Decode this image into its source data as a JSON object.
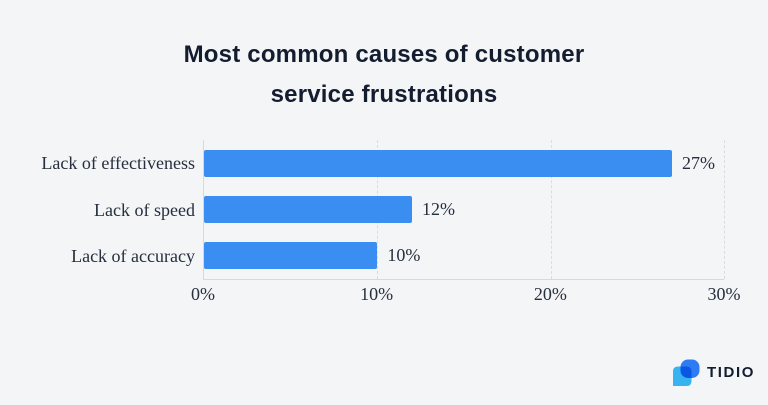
{
  "title": {
    "line1": "Most common causes of customer",
    "line2": "service frustrations"
  },
  "chart_data": {
    "type": "bar",
    "orientation": "horizontal",
    "title": "Most common causes of customer service frustrations",
    "categories": [
      "Lack of effectiveness",
      "Lack of speed",
      "Lack of accuracy"
    ],
    "values": [
      27,
      12,
      10
    ],
    "value_labels": [
      "27%",
      "12%",
      "10%"
    ],
    "x_ticks": [
      "0%",
      "10%",
      "20%",
      "30%"
    ],
    "xlim": [
      0,
      30
    ],
    "xlabel": "",
    "ylabel": "",
    "grid": "vertical-dashed",
    "legend": "none",
    "bar_color": "#3a8ef2"
  },
  "branding": {
    "logo_text": "TIDIO",
    "logo_mark": "tidio-chat-bubbles-icon",
    "mark_colors": {
      "light_bubble": "#36b3f0",
      "dark_bubble": "#2e7cf3"
    }
  },
  "colors": {
    "background": "#f4f5f7",
    "title_text": "#141d2f",
    "label_text": "#262f3d",
    "grid_line": "#d9dce3",
    "axis_line": "#d6dae0"
  }
}
